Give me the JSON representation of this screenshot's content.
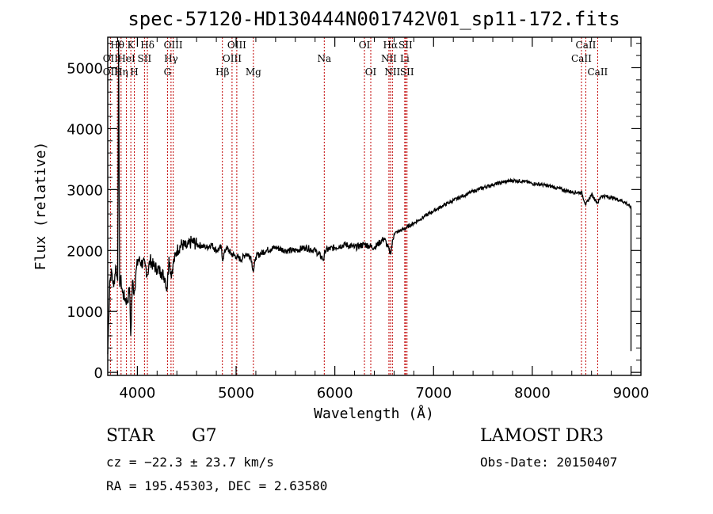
{
  "chart_data": {
    "type": "line",
    "title": "spec-57120-HD130444N001742V01_sp11-172.fits",
    "xlabel": "Wavelength (Å)",
    "ylabel": "Flux (relative)",
    "xlim": [
      3700,
      9100
    ],
    "ylim": [
      -50,
      5500
    ],
    "xticks": [
      4000,
      5000,
      6000,
      7000,
      8000,
      9000
    ],
    "yticks": [
      0,
      1000,
      2000,
      3000,
      4000,
      5000
    ],
    "series": [
      {
        "name": "spectrum",
        "x": [
          3700,
          3720,
          3740,
          3760,
          3780,
          3800,
          3810,
          3820,
          3830,
          3850,
          3880,
          3900,
          3920,
          3933,
          3950,
          3968,
          3990,
          4010,
          4040,
          4080,
          4101,
          4130,
          4160,
          4200,
          4240,
          4280,
          4300,
          4320,
          4340,
          4360,
          4400,
          4450,
          4500,
          4550,
          4600,
          4650,
          4700,
          4750,
          4800,
          4850,
          4861,
          4900,
          4950,
          5000,
          5050,
          5100,
          5150,
          5175,
          5200,
          5250,
          5300,
          5400,
          5500,
          5600,
          5700,
          5800,
          5890,
          5900,
          6000,
          6100,
          6200,
          6300,
          6400,
          6500,
          6563,
          6600,
          6700,
          6800,
          6900,
          7000,
          7100,
          7200,
          7300,
          7400,
          7500,
          7600,
          7700,
          7800,
          7900,
          8000,
          8100,
          8200,
          8300,
          8400,
          8498,
          8542,
          8600,
          8662,
          8700,
          8800,
          8900,
          8950,
          9000
        ],
        "y": [
          300,
          1500,
          1650,
          1400,
          1750,
          1500,
          5450,
          1450,
          1550,
          1300,
          1200,
          1150,
          1400,
          600,
          1500,
          1300,
          1700,
          1850,
          1800,
          1750,
          1600,
          1850,
          1750,
          1700,
          1650,
          1550,
          1350,
          1900,
          1600,
          1750,
          2000,
          2100,
          2050,
          2150,
          2100,
          2080,
          2050,
          2100,
          2000,
          2050,
          1850,
          2050,
          1950,
          1900,
          1850,
          1950,
          1900,
          1650,
          1900,
          1950,
          2000,
          2050,
          2000,
          2000,
          2050,
          2000,
          1850,
          2000,
          2050,
          2100,
          2050,
          2100,
          2050,
          2200,
          1950,
          2280,
          2350,
          2450,
          2550,
          2650,
          2740,
          2820,
          2900,
          2970,
          3030,
          3080,
          3120,
          3150,
          3140,
          3100,
          3080,
          3050,
          3000,
          2960,
          2950,
          2750,
          2920,
          2780,
          2900,
          2870,
          2820,
          2780,
          2700
        ]
      }
    ],
    "emission_lines": [
      {
        "label": "Hθ",
        "wavelength": 3797,
        "row": 0
      },
      {
        "label": "OII",
        "wavelength": 3727,
        "row": 1
      },
      {
        "label": "OII",
        "wavelength": 3727,
        "row": 2
      },
      {
        "label": "Hη",
        "wavelength": 3835,
        "row": 2
      },
      {
        "label": "K",
        "wavelength": 3934,
        "row": 0
      },
      {
        "label": "HeI",
        "wavelength": 3889,
        "row": 1
      },
      {
        "label": "H",
        "wavelength": 3969,
        "row": 2
      },
      {
        "label": "SII",
        "wavelength": 4072,
        "row": 1
      },
      {
        "label": "Hδ",
        "wavelength": 4102,
        "row": 0
      },
      {
        "label": "OIII",
        "wavelength": 4363,
        "row": 0
      },
      {
        "label": "Hγ",
        "wavelength": 4341,
        "row": 1
      },
      {
        "label": "G",
        "wavelength": 4305,
        "row": 2
      },
      {
        "label": "Hβ",
        "wavelength": 4861,
        "row": 2
      },
      {
        "label": "OIII",
        "wavelength": 5007,
        "row": 0
      },
      {
        "label": "OIII",
        "wavelength": 4959,
        "row": 1
      },
      {
        "label": "Mg",
        "wavelength": 5175,
        "row": 2
      },
      {
        "label": "Na",
        "wavelength": 5893,
        "row": 1
      },
      {
        "label": "OI",
        "wavelength": 6300,
        "row": 0
      },
      {
        "label": "OI",
        "wavelength": 6364,
        "row": 2
      },
      {
        "label": "Hα",
        "wavelength": 6563,
        "row": 0
      },
      {
        "label": "SII",
        "wavelength": 6716,
        "row": 0
      },
      {
        "label": "NII",
        "wavelength": 6548,
        "row": 1
      },
      {
        "label": "Li",
        "wavelength": 6708,
        "row": 1
      },
      {
        "label": "NII",
        "wavelength": 6583,
        "row": 2
      },
      {
        "label": "SII",
        "wavelength": 6731,
        "row": 2
      },
      {
        "label": "CaII",
        "wavelength": 8542,
        "row": 0
      },
      {
        "label": "CaII",
        "wavelength": 8498,
        "row": 1
      },
      {
        "label": "CaII",
        "wavelength": 8662,
        "row": 2
      }
    ],
    "colors": {
      "spectrum": "#000000",
      "line_markers": "#c00000",
      "axes": "#000000"
    }
  },
  "info": {
    "class": "STAR",
    "subclass": "G7",
    "cz": "cz = −22.3 ± 23.7 km/s",
    "radec": "RA = 195.45303, DEC =    2.63580",
    "survey": "LAMOST DR3",
    "obs_date": "Obs-Date: 20150407"
  }
}
